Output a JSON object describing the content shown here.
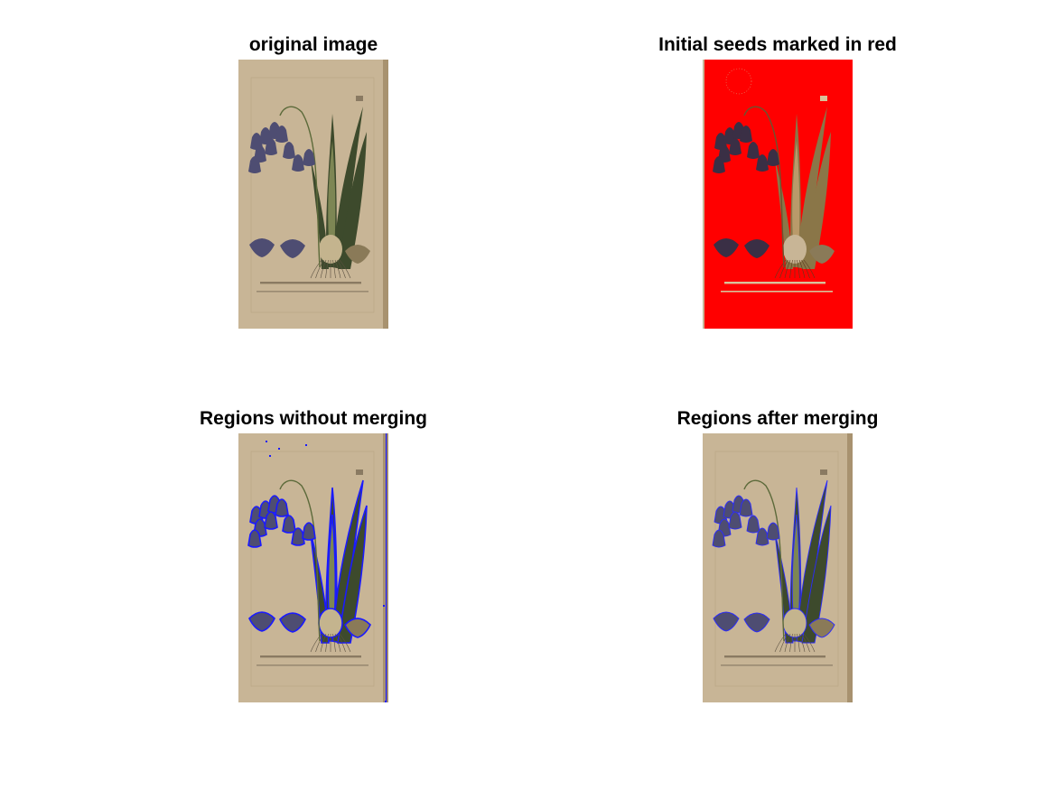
{
  "figure": {
    "panels": [
      {
        "title": "original image",
        "style": "original"
      },
      {
        "title": "Initial seeds marked in red",
        "style": "seeds",
        "seed_color": "#ff0000"
      },
      {
        "title": "Regions without merging",
        "style": "regions",
        "boundary_color": "#1a1aff"
      },
      {
        "title": "Regions after merging",
        "style": "merged",
        "boundary_color": "#2a2aff"
      }
    ],
    "colors": {
      "paper": "#c8b596",
      "paper_edge": "#a8926f",
      "leaf": "#3d4a2c",
      "leaf_light": "#7d8654",
      "flower": "#4e4d72",
      "bulb": "#c4b48e",
      "ink": "#5a5040"
    }
  }
}
